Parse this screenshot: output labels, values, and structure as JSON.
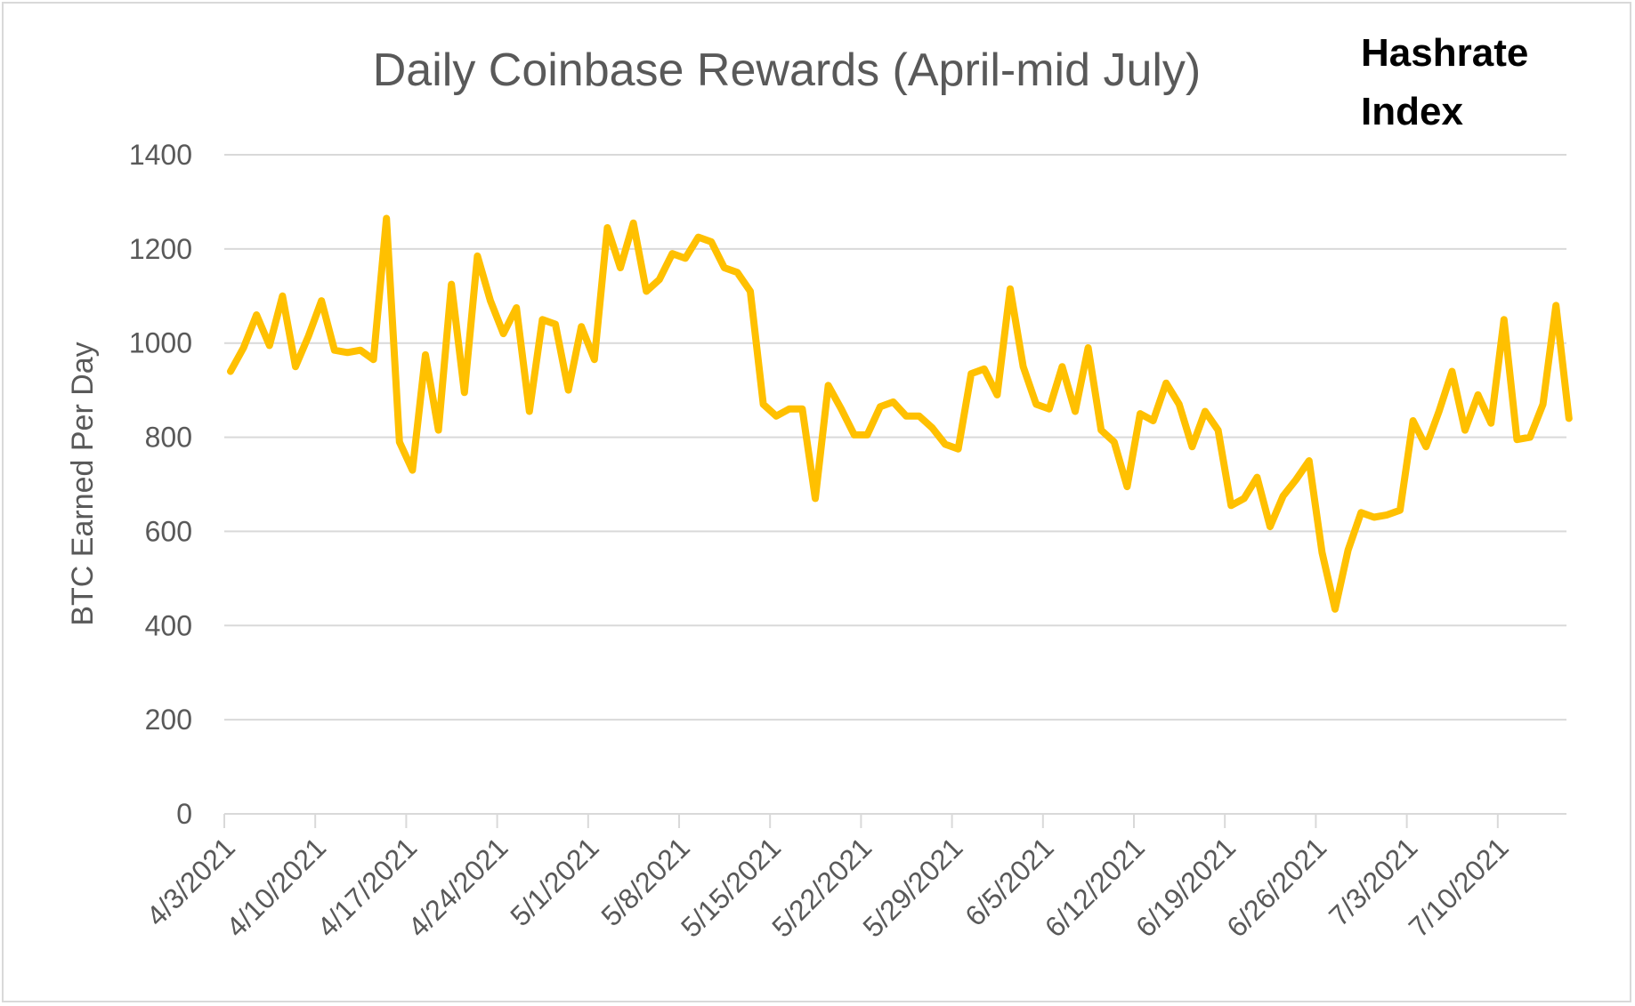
{
  "brand": {
    "line1": "Hashrate",
    "line2": "Index"
  },
  "colors": {
    "series": "#FFC000",
    "gridline": "#d9d9d9",
    "text": "#595959"
  },
  "chart_data": {
    "type": "line",
    "title": "Daily Coinbase Rewards (April-mid July)",
    "xlabel": "",
    "ylabel": "BTC Earned Per Day",
    "ylim": [
      0,
      1400
    ],
    "yticks": [
      0,
      200,
      400,
      600,
      800,
      1000,
      1200,
      1400
    ],
    "grid": true,
    "legend": "none",
    "x_tick_labels": [
      "4/3/2021",
      "4/10/2021",
      "4/17/2021",
      "4/24/2021",
      "5/1/2021",
      "5/8/2021",
      "5/15/2021",
      "5/22/2021",
      "5/29/2021",
      "6/5/2021",
      "6/12/2021",
      "6/19/2021",
      "6/26/2021",
      "7/3/2021",
      "7/10/2021"
    ],
    "series": [
      {
        "start_date": "4/3/2021",
        "values": [
          940,
          990,
          1060,
          995,
          1100,
          950,
          1015,
          1090,
          985,
          980,
          985,
          965,
          1265,
          790,
          730,
          975,
          815,
          1125,
          895,
          1185,
          1090,
          1020,
          1075,
          855,
          1050,
          1040,
          900,
          1035,
          965,
          1245,
          1160,
          1255,
          1110,
          1135,
          1190,
          1180,
          1225,
          1215,
          1160,
          1150,
          1110,
          870,
          845,
          860,
          860,
          670,
          910,
          860,
          805,
          805,
          865,
          875,
          845,
          845,
          820,
          785,
          775,
          935,
          945,
          890,
          1115,
          950,
          870,
          860,
          950,
          855,
          990,
          815,
          790,
          695,
          850,
          835,
          915,
          870,
          780,
          855,
          815,
          655,
          670,
          715,
          610,
          675,
          710,
          750,
          555,
          435,
          560,
          640,
          630,
          635,
          645,
          835,
          780,
          855,
          940,
          815,
          890,
          830,
          1050,
          795,
          800,
          870,
          1080,
          840
        ]
      }
    ]
  }
}
